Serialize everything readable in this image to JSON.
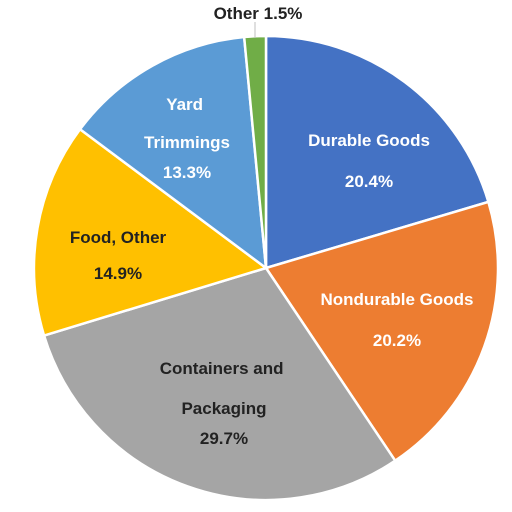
{
  "chart_data": {
    "type": "pie",
    "slices": [
      {
        "label": "Durable Goods",
        "value": 20.4,
        "value_text": "20.4%",
        "color": "#4472C4",
        "text_color": "#ffffff"
      },
      {
        "label": "Nondurable Goods",
        "value": 20.2,
        "value_text": "20.2%",
        "color": "#ED7D31",
        "text_color": "#ffffff"
      },
      {
        "label": "Containers and Packaging",
        "value": 29.7,
        "value_text": "29.7%",
        "color": "#A5A5A5",
        "text_color": "#222222"
      },
      {
        "label": "Food, Other",
        "value": 14.9,
        "value_text": "14.9%",
        "color": "#FFC000",
        "text_color": "#222222"
      },
      {
        "label": "Yard Trimmings",
        "value": 13.3,
        "value_text": "13.3%",
        "color": "#5B9BD5",
        "text_color": "#ffffff"
      },
      {
        "label": "Other",
        "value": 1.5,
        "value_text": "1.5%",
        "color": "#70AD47",
        "text_color": "#222222"
      }
    ],
    "start_angle_deg": 0,
    "direction": "clockwise",
    "slice_border_color": "#ffffff",
    "legend": "none"
  }
}
